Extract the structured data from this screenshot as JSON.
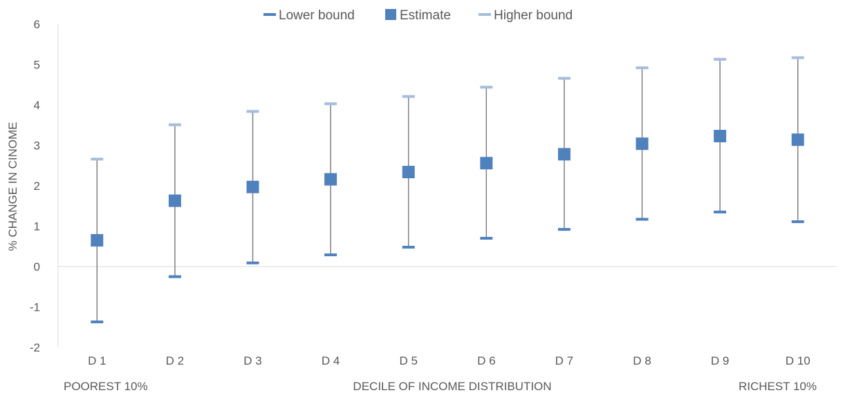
{
  "chart_data": {
    "type": "scatter",
    "categories": [
      "D 1",
      "D 2",
      "D 3",
      "D 4",
      "D 5",
      "D 6",
      "D 7",
      "D 8",
      "D 9",
      "D 10"
    ],
    "series": [
      {
        "name": "Lower bound",
        "values": [
          -1.37,
          -0.25,
          0.09,
          0.29,
          0.48,
          0.7,
          0.92,
          1.17,
          1.35,
          1.11
        ]
      },
      {
        "name": "Estimate",
        "values": [
          0.65,
          1.63,
          1.97,
          2.16,
          2.34,
          2.56,
          2.78,
          3.04,
          3.23,
          3.14
        ]
      },
      {
        "name": "Higher bound",
        "values": [
          2.66,
          3.51,
          3.84,
          4.03,
          4.21,
          4.44,
          4.66,
          4.92,
          5.13,
          5.17
        ]
      }
    ],
    "ylabel": "% CHANGE IN CINOME",
    "xlabel": "DECILE OF INCOME DISTRIBUTION",
    "x_end_labels": {
      "left": "POOREST 10%",
      "right": "RICHEST 10%"
    },
    "ylim": [
      -2,
      6
    ],
    "yticks": [
      6,
      5,
      4,
      3,
      2,
      1,
      0,
      -1,
      -2
    ],
    "legend_position": "top",
    "colors": {
      "lower": "#4f81bd",
      "estimate": "#4f81bd",
      "higher": "#a6bddb",
      "errorbar": "#7f7f7f",
      "axis": "#d9d9d9"
    }
  }
}
